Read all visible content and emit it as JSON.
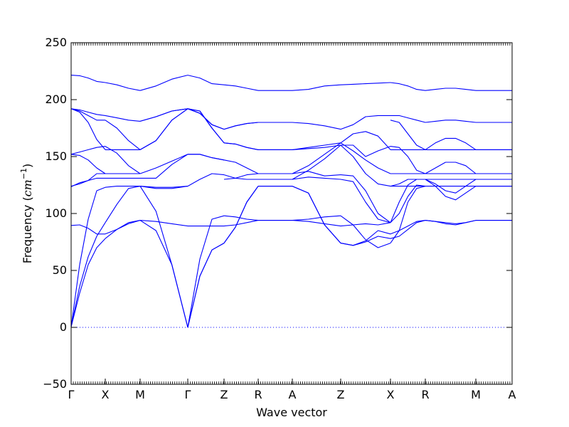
{
  "chart_data": {
    "type": "line",
    "xlabel": "Wave vector",
    "ylabel_prefix": "Frequency (",
    "ylabel_unit": "cm",
    "ylabel_exp": "−1",
    "ylabel_suffix": ")",
    "ylim": [
      -50,
      250
    ],
    "yticks": [
      -50,
      0,
      50,
      100,
      150,
      200,
      250
    ],
    "ytick_labels": [
      "−50",
      "0",
      "50",
      "100",
      "150",
      "200",
      "250"
    ],
    "x_axis": "high-symmetry path",
    "xticks": [
      "Γ",
      "X",
      "M",
      "Γ",
      "Z",
      "R",
      "A",
      "Z",
      "X",
      "R",
      "M",
      "A"
    ],
    "zero_line": "dotted",
    "line_color": "#0000ff",
    "segments": [
      {
        "from": "Γ",
        "to": "X",
        "bands": [
          [
            0.5,
            30,
            55,
            70,
            78
          ],
          [
            0.5,
            36,
            62,
            80,
            92
          ],
          [
            0.5,
            55,
            95,
            120,
            123
          ],
          [
            89.5,
            90,
            87,
            82,
            82
          ],
          [
            123.5,
            127,
            129,
            131,
            131
          ],
          [
            124,
            126,
            129,
            135,
            135
          ],
          [
            152,
            151,
            147,
            140,
            135
          ],
          [
            152,
            154,
            156,
            158,
            159
          ],
          [
            192,
            189,
            180,
            165,
            156
          ],
          [
            192,
            190,
            186,
            182,
            182
          ],
          [
            192,
            191,
            189,
            187,
            186
          ],
          [
            221.5,
            221,
            219,
            216,
            215
          ]
        ]
      },
      {
        "from": "X",
        "to": "M",
        "bands": [
          [
            78,
            86,
            92,
            94
          ],
          [
            82,
            86,
            91,
            94
          ],
          [
            92,
            108,
            122,
            124
          ],
          [
            123,
            124,
            124,
            124
          ],
          [
            131,
            131,
            131,
            131
          ],
          [
            135,
            135,
            135,
            135
          ],
          [
            135,
            135,
            135,
            135
          ],
          [
            159,
            153,
            142,
            135
          ],
          [
            156,
            156,
            156,
            156
          ],
          [
            182,
            175,
            164,
            156
          ],
          [
            186,
            184,
            182,
            181
          ],
          [
            215,
            213,
            210,
            208
          ]
        ]
      },
      {
        "from": "M",
        "to": "Γ",
        "bands": [
          [
            94,
            93,
            91,
            89
          ],
          [
            94,
            85,
            55,
            0
          ],
          [
            124,
            102,
            55,
            0
          ],
          [
            124,
            123,
            123,
            124
          ],
          [
            124,
            122,
            122,
            124
          ],
          [
            131,
            131,
            143,
            152
          ],
          [
            135,
            140,
            146,
            152
          ],
          [
            156,
            164,
            182,
            192
          ],
          [
            156,
            164,
            182,
            192
          ],
          [
            181,
            185,
            190,
            192
          ],
          [
            181,
            185,
            190,
            192
          ],
          [
            208,
            212,
            218,
            221.5
          ]
        ]
      },
      {
        "from": "Γ",
        "to": "Z",
        "bands": [
          [
            0,
            60,
            95,
            98
          ],
          [
            0,
            45,
            68,
            74
          ],
          [
            0,
            45,
            68,
            74
          ],
          [
            89,
            89,
            89,
            89
          ],
          [
            124,
            130,
            135,
            134
          ],
          [
            152,
            152,
            149,
            147
          ],
          [
            152,
            152,
            149,
            147
          ],
          [
            192,
            190,
            175,
            162
          ],
          [
            192,
            190,
            175,
            162
          ],
          [
            192,
            188,
            178,
            174
          ],
          [
            192,
            188,
            178,
            174
          ],
          [
            221.5,
            219,
            214,
            213
          ]
        ]
      },
      {
        "from": "Z",
        "to": "R",
        "bands": [
          [
            98,
            97,
            95,
            94
          ],
          [
            74,
            88,
            110,
            124
          ],
          [
            74,
            88,
            110,
            124
          ],
          [
            89,
            90,
            92,
            94
          ],
          [
            134,
            131,
            130,
            130
          ],
          [
            130,
            131,
            134,
            135
          ],
          [
            147,
            145,
            140,
            135
          ],
          [
            162,
            161,
            158,
            156
          ],
          [
            162,
            161,
            158,
            156
          ],
          [
            174,
            177,
            179,
            180
          ],
          [
            174,
            177,
            179,
            180
          ],
          [
            213,
            212,
            210,
            208
          ]
        ]
      },
      {
        "from": "R",
        "to": "A",
        "bands": [
          [
            94,
            94,
            94,
            94
          ],
          [
            94,
            94,
            94,
            94
          ],
          [
            124,
            124,
            124,
            124
          ],
          [
            124,
            124,
            124,
            124
          ],
          [
            130,
            130,
            130,
            130
          ],
          [
            130,
            130,
            130,
            130
          ],
          [
            135,
            135,
            135,
            135
          ],
          [
            135,
            135,
            135,
            135
          ],
          [
            156,
            156,
            156,
            156
          ],
          [
            156,
            156,
            156,
            156
          ],
          [
            180,
            180,
            180,
            180
          ],
          [
            208,
            208,
            208,
            208
          ]
        ]
      },
      {
        "from": "A",
        "to": "Z",
        "bands": [
          [
            94,
            95,
            97,
            98
          ],
          [
            94,
            93,
            91,
            89
          ],
          [
            124,
            118,
            90,
            74
          ],
          [
            124,
            118,
            90,
            74
          ],
          [
            130,
            132,
            131,
            130
          ],
          [
            130,
            138,
            148,
            160
          ],
          [
            135,
            137,
            133,
            134
          ],
          [
            135,
            142,
            152,
            162
          ],
          [
            156,
            157,
            158,
            160
          ],
          [
            156,
            158,
            160,
            162
          ],
          [
            180,
            179,
            177,
            174
          ],
          [
            208,
            209,
            212,
            213
          ]
        ]
      },
      {
        "from": "Z",
        "to": "X",
        "bands": [
          [
            74,
            72,
            75,
            80,
            78
          ],
          [
            74,
            72,
            76,
            85,
            82
          ],
          [
            98,
            90,
            77,
            70,
            74
          ],
          [
            89,
            90,
            91,
            90,
            92
          ],
          [
            130,
            128,
            110,
            95,
            92
          ],
          [
            134,
            133,
            120,
            100,
            92
          ],
          [
            160,
            150,
            135,
            126,
            124
          ],
          [
            162,
            155,
            147,
            140,
            135
          ],
          [
            160,
            160,
            150,
            155,
            159
          ],
          [
            162,
            170,
            172,
            168,
            156
          ],
          [
            174,
            178,
            185,
            186,
            186
          ],
          [
            213,
            213.5,
            214,
            214.5,
            215
          ]
        ]
      },
      {
        "from": "X",
        "to": "R",
        "bands": [
          [
            78,
            80,
            86,
            92,
            94
          ],
          [
            82,
            85,
            89,
            93,
            94
          ],
          [
            74,
            85,
            110,
            122,
            124
          ],
          [
            92,
            100,
            115,
            125,
            124
          ],
          [
            92,
            110,
            125,
            130,
            130
          ],
          [
            124,
            124,
            124,
            124,
            124
          ],
          [
            124,
            126,
            130,
            130,
            130
          ],
          [
            135,
            135,
            135,
            135,
            135
          ],
          [
            159,
            158,
            150,
            138,
            135
          ],
          [
            156,
            156,
            156,
            156,
            156
          ],
          [
            182,
            180,
            170,
            160,
            156
          ],
          [
            186,
            186,
            184,
            182,
            180
          ],
          [
            215,
            214,
            212,
            209,
            208
          ]
        ]
      },
      {
        "from": "R",
        "to": "M",
        "bands": [
          [
            94,
            93,
            91,
            90,
            92,
            94
          ],
          [
            94,
            93,
            92,
            91,
            92,
            94
          ],
          [
            124,
            124,
            124,
            124,
            124,
            124
          ],
          [
            130,
            124,
            115,
            112,
            118,
            124
          ],
          [
            130,
            126,
            120,
            118,
            124,
            130
          ],
          [
            130,
            130,
            130,
            130,
            130,
            130
          ],
          [
            135,
            140,
            145,
            145,
            142,
            135
          ],
          [
            135,
            135,
            135,
            135,
            135,
            135
          ],
          [
            156,
            162,
            166,
            166,
            162,
            156
          ],
          [
            156,
            156,
            156,
            156,
            156,
            156
          ],
          [
            180,
            181,
            182,
            182,
            181,
            180
          ],
          [
            208,
            209,
            210,
            210,
            209,
            208
          ]
        ]
      },
      {
        "from": "M",
        "to": "A",
        "bands": [
          [
            94,
            94,
            94,
            94
          ],
          [
            94,
            94,
            94,
            94
          ],
          [
            124,
            124,
            124,
            124
          ],
          [
            124,
            124,
            124,
            124
          ],
          [
            130,
            130,
            130,
            130
          ],
          [
            130,
            130,
            130,
            130
          ],
          [
            135,
            135,
            135,
            135
          ],
          [
            135,
            135,
            135,
            135
          ],
          [
            156,
            156,
            156,
            156
          ],
          [
            156,
            156,
            156,
            156
          ],
          [
            180,
            180,
            180,
            180
          ],
          [
            208,
            208,
            208,
            208
          ]
        ]
      }
    ]
  }
}
